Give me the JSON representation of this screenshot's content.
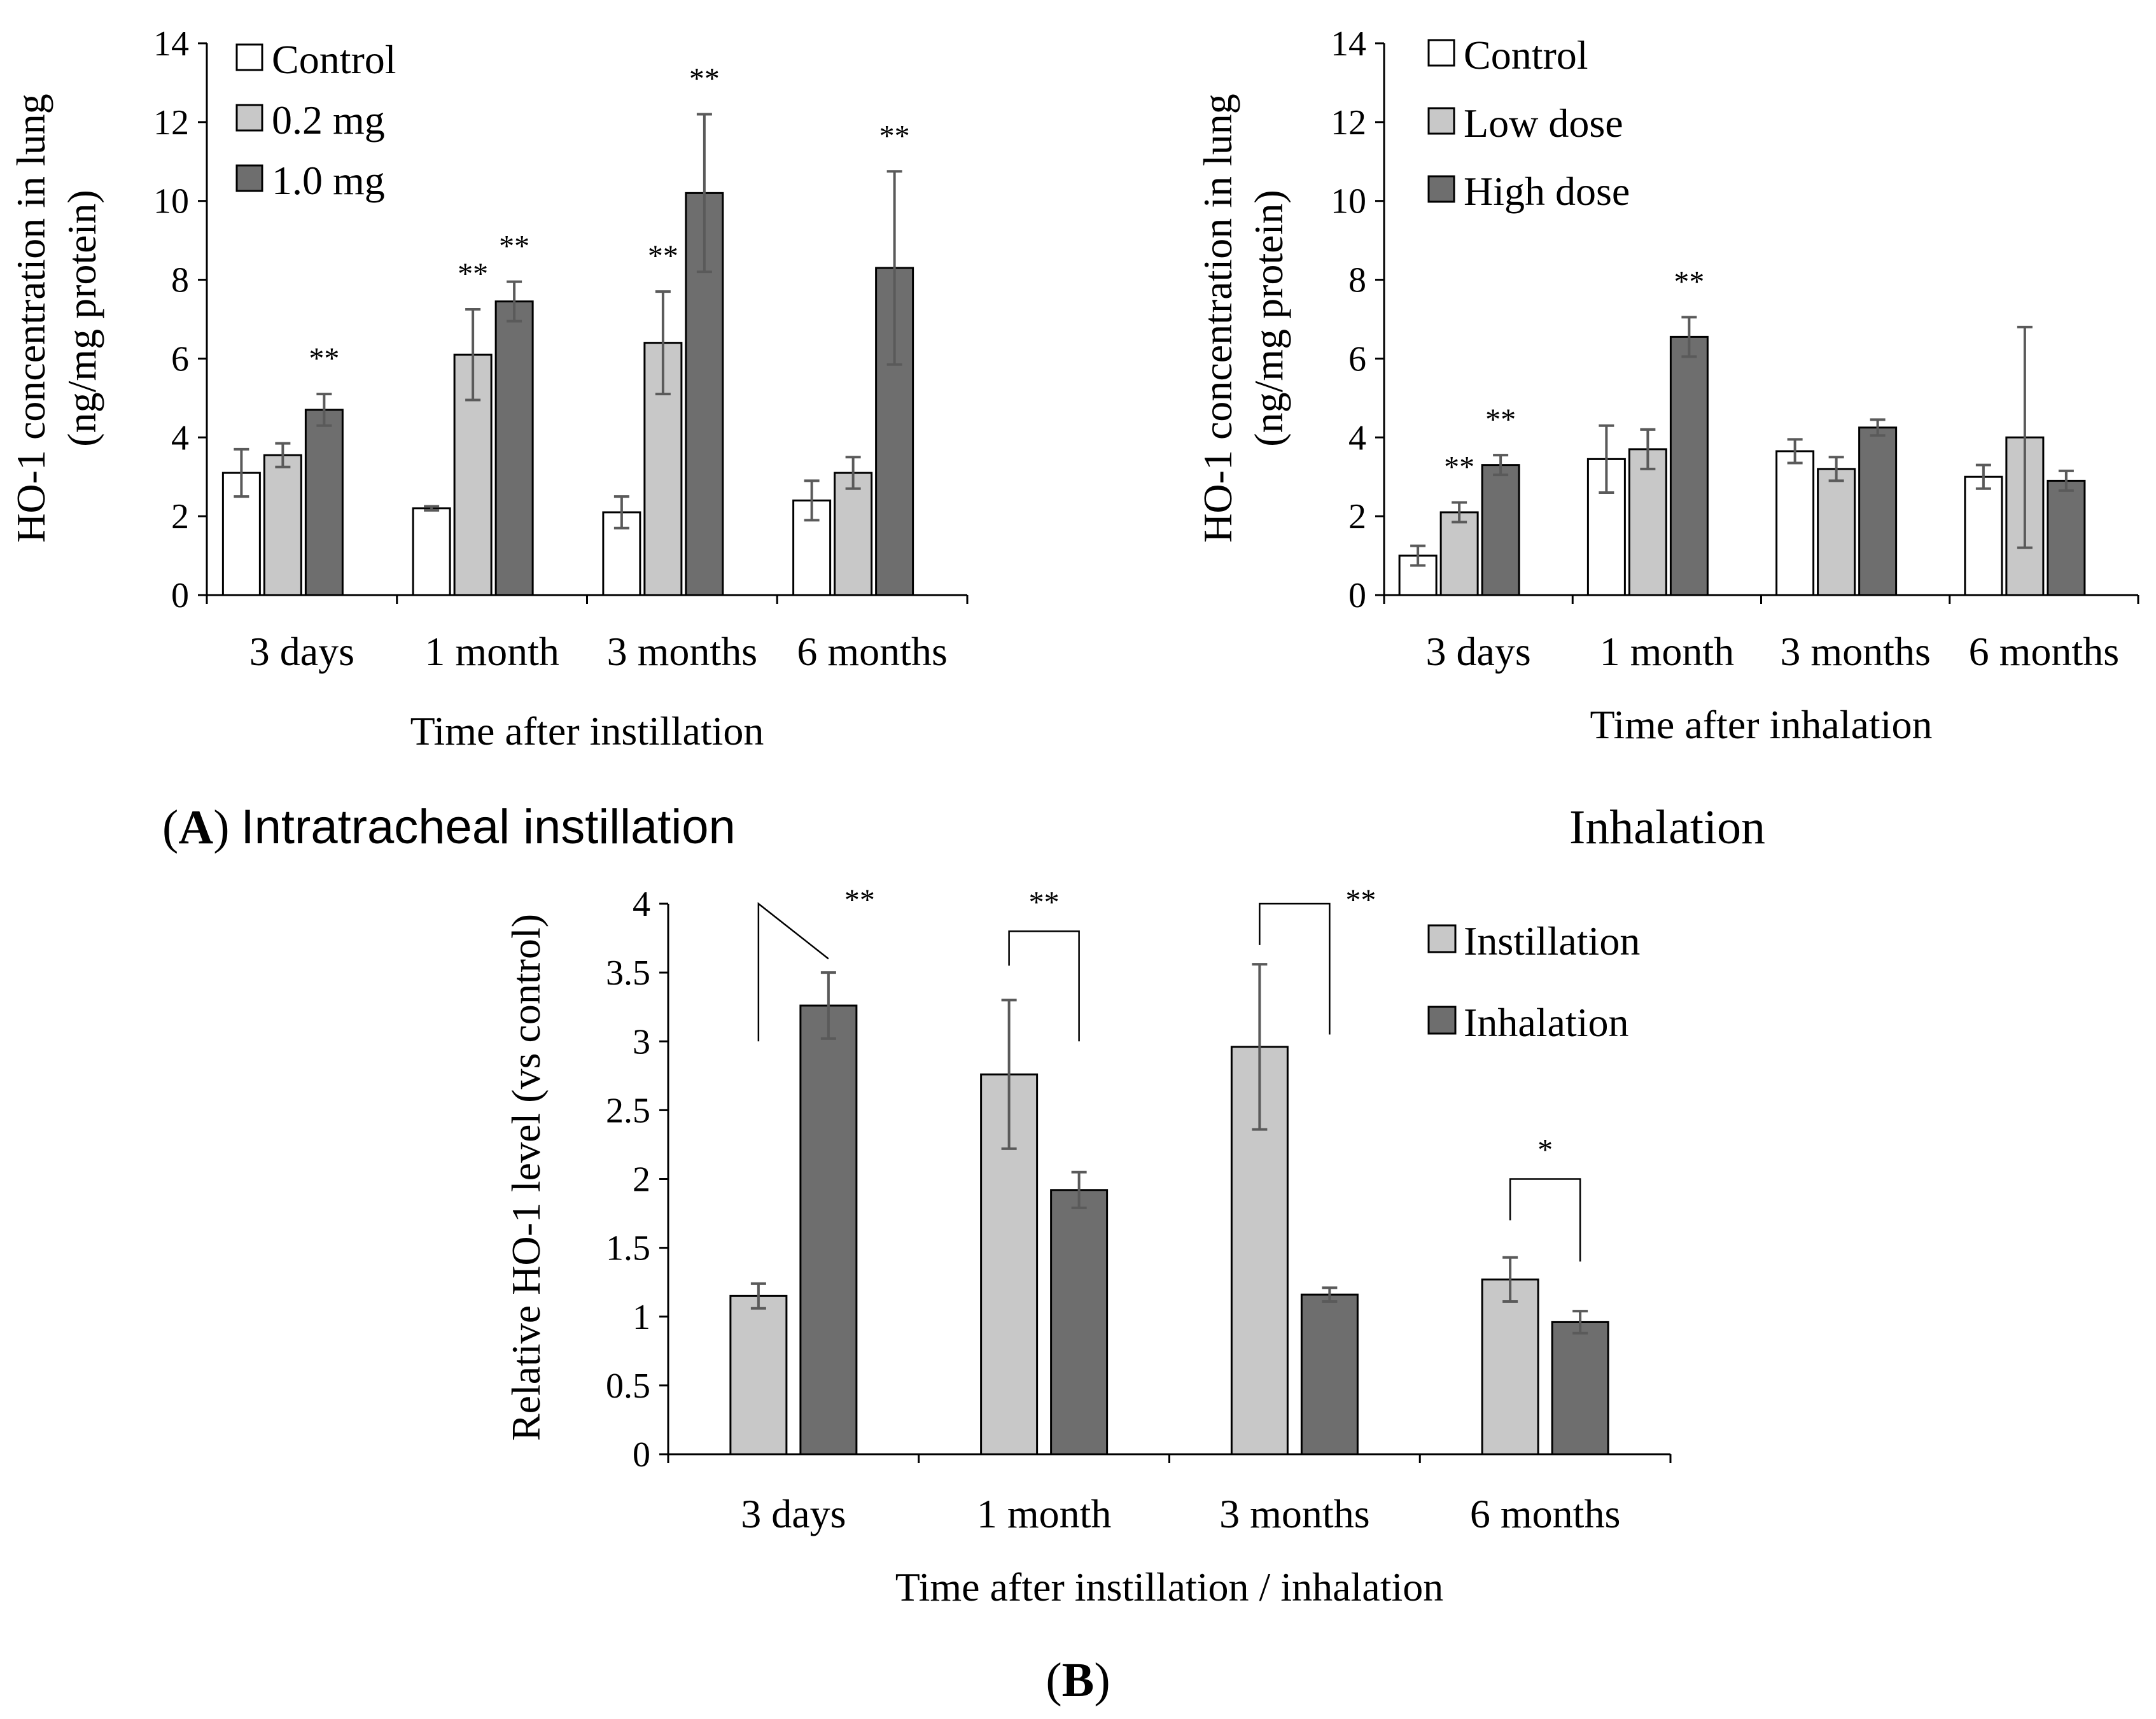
{
  "colors": {
    "control": "#ffffff",
    "light": "#c8c8c8",
    "dark": "#6e6e6e",
    "axis": "#000000",
    "error": "#5a5a5a"
  },
  "captions": {
    "a_letter": "A",
    "a_text": "Intratracheal instillation",
    "a_right": "Inhalation",
    "b_letter": "B"
  },
  "chart_data": [
    {
      "id": "A-left",
      "type": "bar",
      "title": "",
      "ylabel_line1": "HO-1 concentration in lung",
      "ylabel_line2": "(ng/mg protein)",
      "xlabel": "Time after instillation",
      "ylim": [
        0,
        14
      ],
      "yticks": [
        0,
        2,
        4,
        6,
        8,
        10,
        12,
        14
      ],
      "ytick_labels": [
        "0",
        "2",
        "4",
        "6",
        "8",
        "10",
        "12",
        "14"
      ],
      "categories": [
        "3 days",
        "1 month",
        "3 months",
        "6 months"
      ],
      "legend_position": "top-left",
      "series": [
        {
          "name": "Control",
          "color_key": "control",
          "values": [
            3.1,
            2.2,
            2.1,
            2.4
          ],
          "errors": [
            0.6,
            0.05,
            0.4,
            0.5
          ],
          "sig": [
            "",
            "",
            "",
            ""
          ]
        },
        {
          "name": "0.2 mg",
          "color_key": "light",
          "values": [
            3.55,
            6.1,
            6.4,
            3.1
          ],
          "errors": [
            0.3,
            1.15,
            1.3,
            0.4
          ],
          "sig": [
            "",
            "**",
            "**",
            ""
          ]
        },
        {
          "name": "1.0 mg",
          "color_key": "dark",
          "values": [
            4.7,
            7.45,
            10.2,
            8.3
          ],
          "errors": [
            0.4,
            0.5,
            2.0,
            2.45
          ],
          "sig": [
            "**",
            "**",
            "**",
            "**"
          ]
        }
      ]
    },
    {
      "id": "A-right",
      "type": "bar",
      "title": "",
      "ylabel_line1": "HO-1 concentration in lung",
      "ylabel_line2": "(ng/mg protein)",
      "xlabel": "Time after inhalation",
      "ylim": [
        0,
        14
      ],
      "yticks": [
        0,
        2,
        4,
        6,
        8,
        10,
        12,
        14
      ],
      "ytick_labels": [
        "0",
        "2",
        "4",
        "6",
        "8",
        "10",
        "12",
        "14"
      ],
      "categories": [
        "3 days",
        "1 month",
        "3 months",
        "6 months"
      ],
      "legend_position": "top-left",
      "series": [
        {
          "name": "Control",
          "color_key": "control",
          "values": [
            1.0,
            3.45,
            3.65,
            3.0
          ],
          "errors": [
            0.25,
            0.85,
            0.3,
            0.3
          ],
          "sig": [
            "",
            "",
            "",
            ""
          ]
        },
        {
          "name": "Low dose",
          "color_key": "light",
          "values": [
            2.1,
            3.7,
            3.2,
            4.0
          ],
          "errors": [
            0.25,
            0.5,
            0.3,
            2.8
          ],
          "sig": [
            "**",
            "",
            "",
            ""
          ]
        },
        {
          "name": "High dose",
          "color_key": "dark",
          "values": [
            3.3,
            6.55,
            4.25,
            2.9
          ],
          "errors": [
            0.25,
            0.5,
            0.2,
            0.25
          ],
          "sig": [
            "**",
            "**",
            "",
            ""
          ]
        }
      ]
    },
    {
      "id": "B",
      "type": "bar",
      "title": "",
      "ylabel": "Relative HO-1 level (vs control)",
      "xlabel": "Time after instillation / inhalation",
      "ylim": [
        0,
        4
      ],
      "yticks": [
        0,
        0.5,
        1,
        1.5,
        2,
        2.5,
        3,
        3.5,
        4
      ],
      "ytick_labels": [
        "0",
        "0.5",
        "1",
        "1.5",
        "2",
        "2.5",
        "3",
        "3.5",
        "4"
      ],
      "categories": [
        "3 days",
        "1 month",
        "3 months",
        "6 months"
      ],
      "legend_position": "top-right",
      "series": [
        {
          "name": "Instillation",
          "color_key": "light",
          "values": [
            1.15,
            2.76,
            2.96,
            1.27
          ],
          "errors": [
            0.09,
            0.54,
            0.6,
            0.16
          ]
        },
        {
          "name": "Inhalation",
          "color_key": "dark",
          "values": [
            3.26,
            1.92,
            1.16,
            0.96
          ],
          "errors": [
            0.24,
            0.13,
            0.05,
            0.08
          ]
        }
      ],
      "brackets": [
        {
          "category_index": 0,
          "label": "**",
          "left_top": 4.0,
          "right_top": 3.6,
          "left_bottom": 3.0,
          "right_bottom": 3.6,
          "label_side": "right"
        },
        {
          "category_index": 1,
          "label": "**",
          "left_top": 3.8,
          "right_top": 3.8,
          "left_bottom": 3.55,
          "right_bottom": 3.0,
          "label_side": "left"
        },
        {
          "category_index": 2,
          "label": "**",
          "left_top": 4.0,
          "right_top": 4.0,
          "left_bottom": 3.7,
          "right_bottom": 3.05,
          "label_side": "right"
        },
        {
          "category_index": 3,
          "label": "*",
          "left_top": 2.0,
          "right_top": 2.0,
          "left_bottom": 1.7,
          "right_bottom": 1.4,
          "label_side": "center"
        }
      ]
    }
  ]
}
